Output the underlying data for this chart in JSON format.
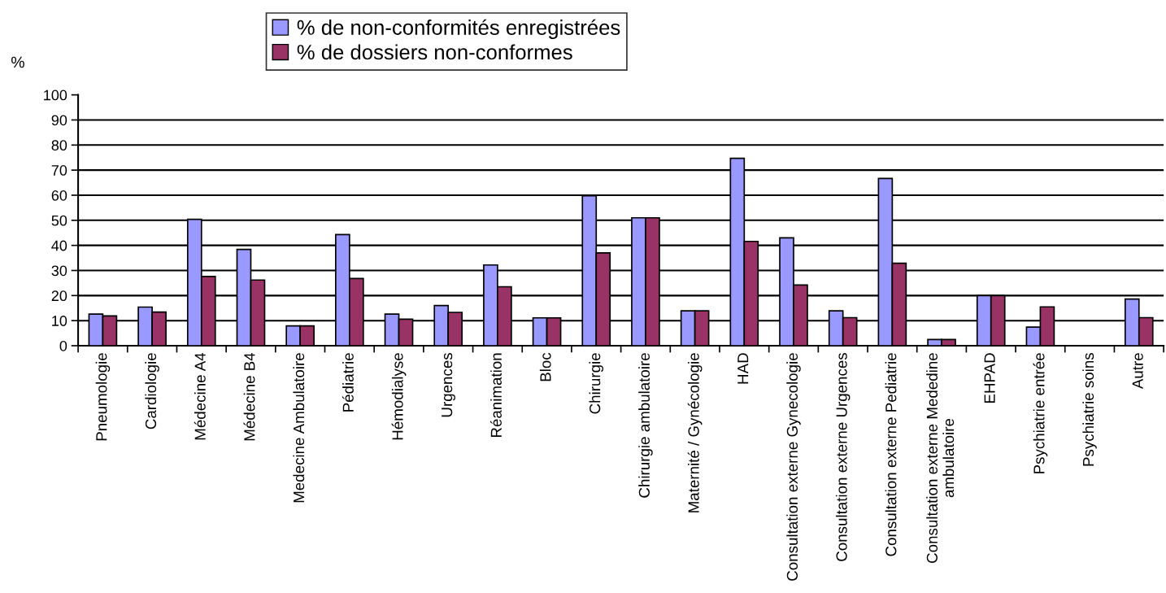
{
  "chart_data": {
    "type": "bar",
    "ylabel": "%",
    "categories": [
      "Pneumologie",
      "Cardiologie",
      "Médecine A4",
      "Médecine B4",
      "Medecine Ambulatoire",
      "Pédiatrie",
      "Hémodialyse",
      "Urgences",
      "Réanimation",
      "Bloc",
      "Chirurgie",
      "Chirurgie ambulatoire",
      "Maternité / Gynécologie",
      "HAD",
      "Consultation externe Gynecologie",
      "Consultation externe Urgences",
      "Consultation externe Pediatrie",
      "Consultation externe Mededine\nambulatoire",
      "EHPAD",
      "Psychiatrie entrée",
      "Psychiatrie soins",
      "Autre"
    ],
    "series": [
      {
        "name": "% de non-conformités enregistrées",
        "color": "#9999ff",
        "values": [
          12.6,
          15.4,
          50.4,
          38.4,
          7.9,
          44.3,
          12.6,
          16,
          32.2,
          11.1,
          59.8,
          51,
          13.9,
          74.7,
          43,
          13.9,
          66.7,
          2.5,
          20,
          7.4,
          null,
          18.6
        ]
      },
      {
        "name": "% de dossiers non-conformes",
        "color": "#993366",
        "values": [
          11.9,
          13.4,
          27.6,
          26.2,
          7.9,
          26.8,
          10.6,
          13.3,
          23.5,
          11.1,
          37,
          51,
          13.9,
          41.6,
          24.2,
          11.2,
          32.9,
          2.5,
          20,
          15.5,
          null,
          11.2
        ]
      }
    ],
    "ylim": [
      0,
      100
    ],
    "yticks": [
      0,
      10,
      20,
      30,
      40,
      50,
      60,
      70,
      80,
      90,
      100
    ],
    "grid": "y",
    "legend": "top"
  }
}
